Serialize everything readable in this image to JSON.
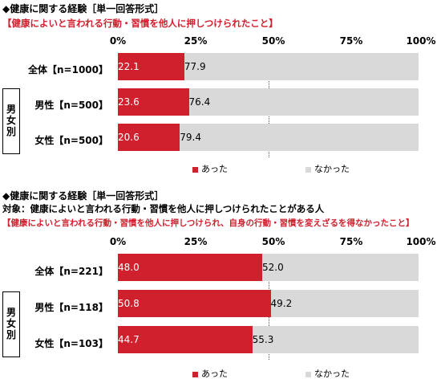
{
  "chart_data": [
    {
      "type": "bar",
      "title": "◆健康に関する経験［単一回答形式］",
      "subtitle": "【健康によいと言われる行動・習慣を他人に押しつけられたこと】",
      "target": "",
      "xlim": [
        0,
        100
      ],
      "xticks": [
        "0%",
        "25%",
        "50%",
        "75%",
        "100%"
      ],
      "categories": [
        "全体【n=1000】",
        "男性【n=500】",
        "女性【n=500】"
      ],
      "group_label": "男女別",
      "series": [
        {
          "name": "あった",
          "values": [
            22.1,
            23.6,
            20.6
          ],
          "labels": [
            "22.1",
            "23.6",
            "20.6"
          ]
        },
        {
          "name": "なかった",
          "values": [
            77.9,
            76.4,
            79.4
          ],
          "labels": [
            "77.9",
            "76.4",
            "79.4"
          ]
        }
      ]
    },
    {
      "type": "bar",
      "title": "◆健康に関する経験［単一回答形式］",
      "subtitle": "【健康によいと言われる行動・習慣を他人に押しつけられ、自身の行動・習慣を変えざるを得なかったこと】",
      "target": "対象：健康によいと言われる行動・習慣を他人に押しつけられたことがある人",
      "xlim": [
        0,
        100
      ],
      "xticks": [
        "0%",
        "25%",
        "50%",
        "75%",
        "100%"
      ],
      "categories": [
        "全体【n=221】",
        "男性【n=118】",
        "女性【n=103】"
      ],
      "group_label": "男女別",
      "series": [
        {
          "name": "あった",
          "values": [
            48.0,
            50.8,
            44.7
          ],
          "labels": [
            "48.0",
            "50.8",
            "44.7"
          ]
        },
        {
          "name": "なかった",
          "values": [
            52.0,
            49.2,
            55.3
          ],
          "labels": [
            "52.0",
            "49.2",
            "55.3"
          ]
        }
      ]
    }
  ],
  "colors": {
    "series1": "#d0202e",
    "series2": "#d9d9d9",
    "subtitle": "#d0202e"
  }
}
